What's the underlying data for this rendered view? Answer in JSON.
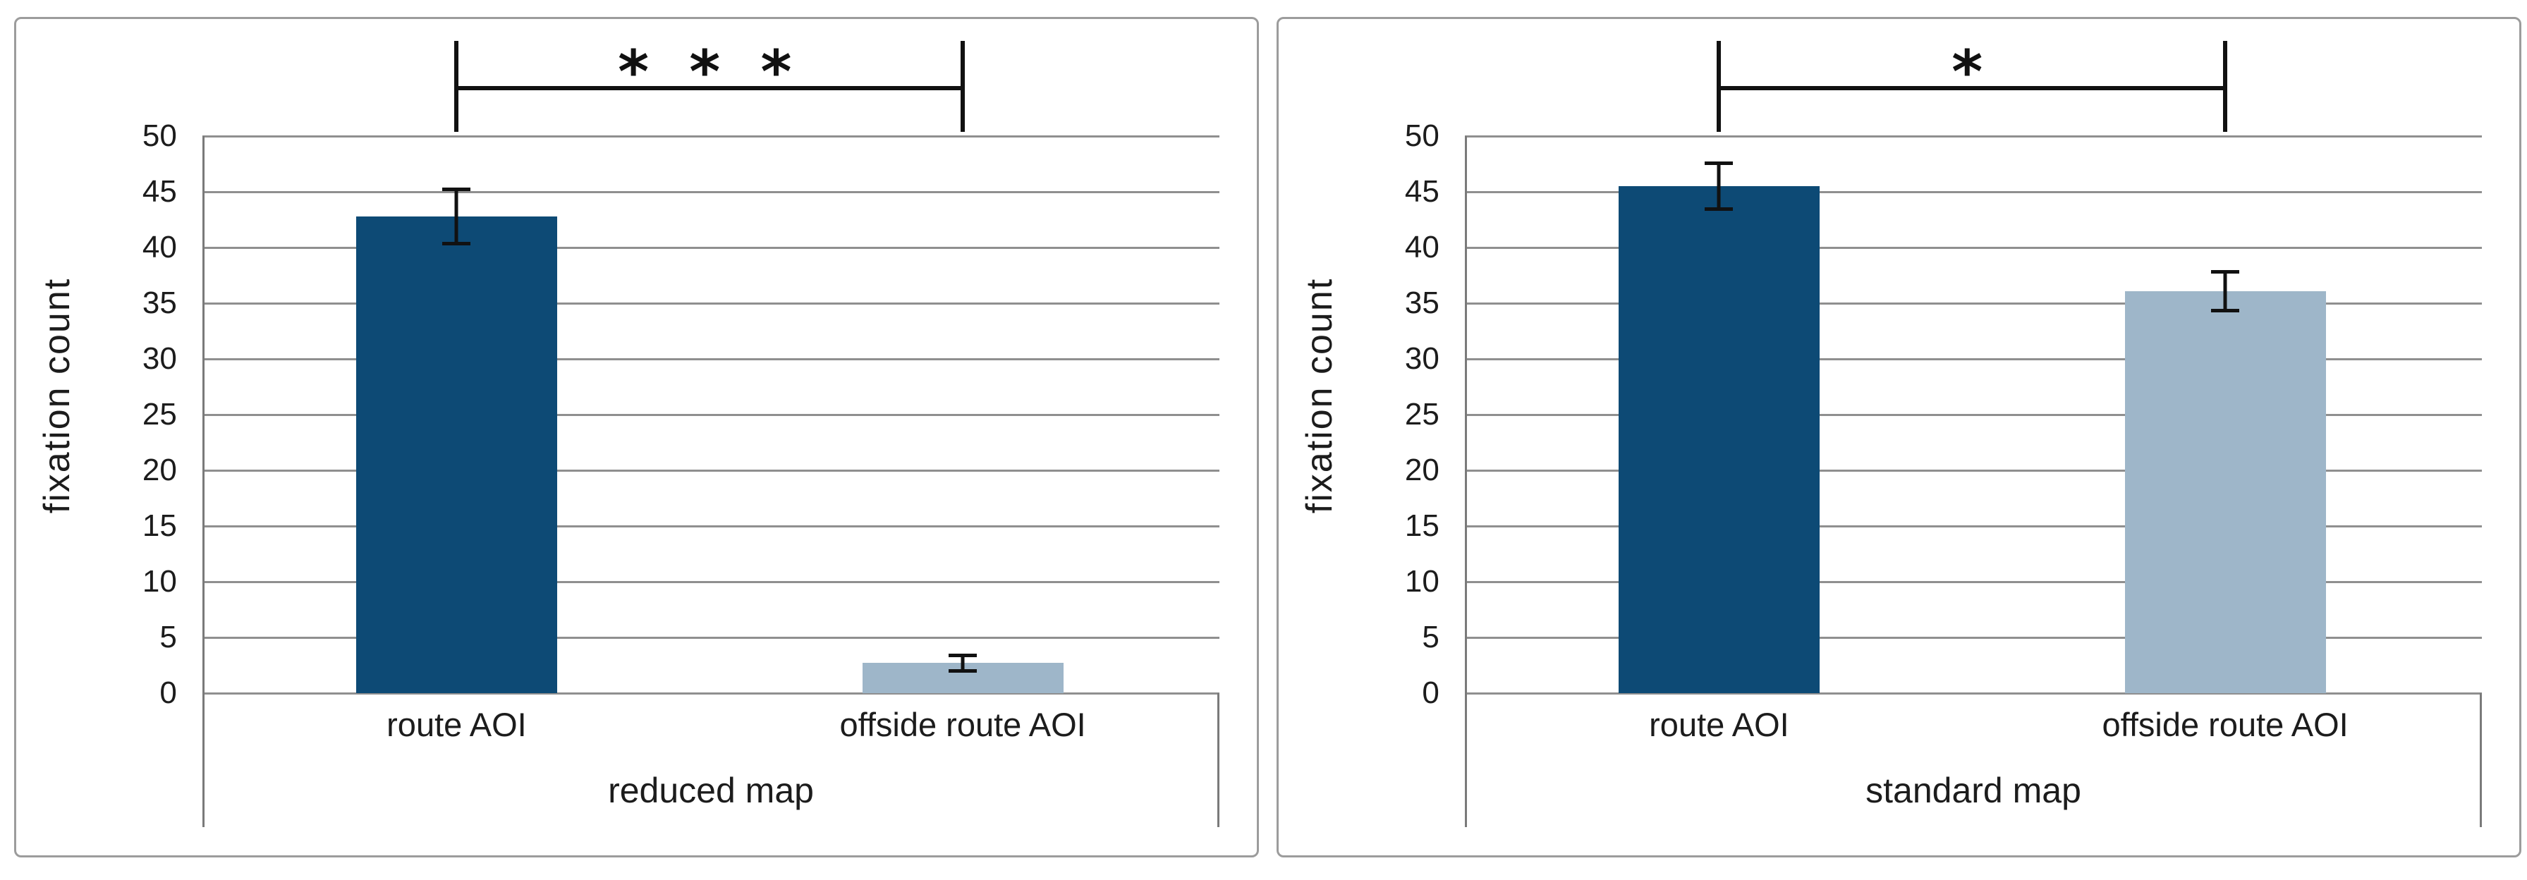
{
  "figure": {
    "description_text": "",
    "background_color": "#ffffff",
    "panel_border_color": "#9c9c9c",
    "gridline_color": "#8f8f8f",
    "error_bar_color": "#111111",
    "text_color": "#1c1c1c"
  },
  "chart_data": [
    {
      "type": "bar",
      "title": "",
      "xlabel": "reduced map",
      "ylabel": "fixation count",
      "ylim": [
        0,
        50
      ],
      "ytick_step": 5,
      "yticks": [
        0,
        5,
        10,
        15,
        20,
        25,
        30,
        35,
        40,
        45,
        50
      ],
      "grid": true,
      "legend_position": "none",
      "categories": [
        "route AOI",
        "offside route AOI"
      ],
      "values": [
        42.8,
        2.7
      ],
      "errors": [
        2.6,
        0.85
      ],
      "bar_colors": [
        "#0d4a75",
        "#9eb6c9"
      ],
      "significance": {
        "label": "* * *",
        "between": [
          "route AOI",
          "offside route AOI"
        ]
      }
    },
    {
      "type": "bar",
      "title": "",
      "xlabel": "standard map",
      "ylabel": "fixation count",
      "ylim": [
        0,
        50
      ],
      "ytick_step": 5,
      "yticks": [
        0,
        5,
        10,
        15,
        20,
        25,
        30,
        35,
        40,
        45,
        50
      ],
      "grid": true,
      "legend_position": "none",
      "categories": [
        "route AOI",
        "offside route AOI"
      ],
      "values": [
        45.5,
        36.1
      ],
      "errors": [
        2.2,
        1.9
      ],
      "bar_colors": [
        "#0d4a75",
        "#9eb6c9"
      ],
      "significance": {
        "label": "*",
        "between": [
          "route AOI",
          "offside route AOI"
        ]
      }
    }
  ]
}
